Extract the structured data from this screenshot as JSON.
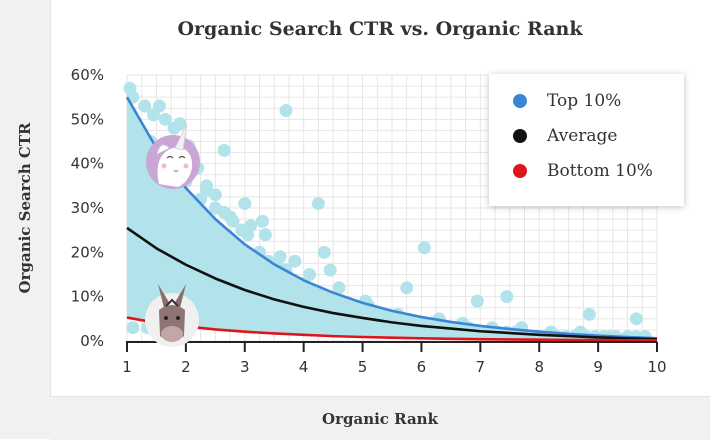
{
  "chart_data": {
    "type": "scatter",
    "title": "Organic Search CTR vs. Organic Rank",
    "xlabel": "Organic Rank",
    "ylabel": "Organic Search CTR",
    "xlim": [
      1,
      10
    ],
    "ylim": [
      0,
      60
    ],
    "x_ticks": [
      "1",
      "2",
      "3",
      "4",
      "5",
      "6",
      "7",
      "8",
      "9",
      "10"
    ],
    "y_ticks": [
      "0%",
      "10%",
      "20%",
      "30%",
      "40%",
      "50%",
      "60%"
    ],
    "grid": true,
    "legend_position": "top-right",
    "series": [
      {
        "name": "Top 10%",
        "color": "#3b85d6",
        "x": [
          1,
          1.5,
          2,
          2.5,
          3,
          3.5,
          4,
          4.5,
          5,
          5.5,
          6,
          6.5,
          7,
          7.5,
          8,
          8.5,
          9,
          9.5,
          10
        ],
        "values": [
          55,
          43.5,
          34.5,
          27.5,
          21.8,
          17.3,
          13.7,
          10.9,
          8.6,
          6.8,
          5.4,
          4.3,
          3.4,
          2.7,
          2.1,
          1.6,
          1.2,
          0.9,
          0.6
        ]
      },
      {
        "name": "Average",
        "color": "#111111",
        "x": [
          1,
          1.5,
          2,
          2.5,
          3,
          3.5,
          4,
          4.5,
          5,
          5.5,
          6,
          6.5,
          7,
          7.5,
          8,
          8.5,
          9,
          9.5,
          10
        ],
        "values": [
          25.5,
          20.9,
          17.2,
          14.1,
          11.5,
          9.4,
          7.7,
          6.3,
          5.2,
          4.2,
          3.4,
          2.8,
          2.2,
          1.8,
          1.4,
          1.1,
          0.8,
          0.6,
          0.4
        ]
      },
      {
        "name": "Bottom 10%",
        "color": "#e0141b",
        "x": [
          1,
          1.5,
          2,
          2.5,
          3,
          3.5,
          4,
          4.5,
          5,
          5.5,
          6,
          6.5,
          7,
          7.5,
          8,
          8.5,
          9,
          9.5,
          10
        ],
        "values": [
          5.3,
          4.1,
          3.3,
          2.6,
          2.1,
          1.7,
          1.4,
          1.1,
          0.9,
          0.75,
          0.6,
          0.5,
          0.42,
          0.35,
          0.3,
          0.25,
          0.2,
          0.17,
          0.15
        ]
      }
    ],
    "scatter_points": {
      "color": "#b3e3ea",
      "x": [
        1.05,
        1.1,
        1.3,
        1.45,
        1.55,
        1.65,
        1.8,
        1.9,
        2.05,
        2.2,
        2.35,
        2.5,
        2.65,
        2.8,
        2.95,
        3.05,
        3.25,
        3.4,
        3.55,
        3.7,
        3.85,
        4.0,
        4.15,
        4.3,
        4.4,
        4.55,
        4.7,
        4.85,
        5.0,
        5.2,
        5.35,
        5.5,
        5.7,
        5.9,
        6.05,
        6.2,
        6.4,
        6.6,
        6.8,
        6.95,
        7.1,
        7.3,
        7.45,
        7.6,
        7.8,
        7.95,
        8.1,
        8.3,
        8.45,
        8.6,
        8.8,
        8.95,
        9.1,
        9.3,
        9.5,
        9.65,
        3.7,
        6.05,
        4.25,
        2.65,
        1.1,
        1.55,
        1.85,
        2.35,
        3.0,
        3.3,
        4.35,
        5.75,
        6.95,
        7.45,
        8.85,
        9.65,
        1.2,
        1.4,
        2.0,
        2.5,
        3.1,
        3.6,
        4.1,
        4.6,
        5.1,
        5.6,
        6.3,
        6.7,
        7.2,
        7.7,
        8.2,
        8.7,
        9.2,
        9.8,
        1.35,
        1.7,
        2.25,
        2.75,
        3.35,
        3.85,
        4.45,
        5.05
      ],
      "y": [
        57,
        55,
        53,
        51,
        53,
        50,
        48,
        49,
        44,
        39,
        35,
        33,
        29,
        27,
        25,
        24,
        20,
        18,
        17,
        16,
        13,
        13,
        11,
        10,
        9,
        9,
        8,
        7,
        7,
        6,
        6,
        5,
        5,
        4,
        4,
        4,
        3,
        3,
        3,
        2,
        2,
        2,
        2,
        2,
        1,
        1,
        1,
        1,
        1,
        1,
        1,
        1,
        1,
        1,
        1,
        1,
        52,
        21,
        31,
        43,
        3,
        4,
        3,
        34,
        31,
        27,
        20,
        12,
        9,
        10,
        6,
        5,
        40,
        45,
        36,
        30,
        26,
        19,
        15,
        12,
        8,
        6,
        5,
        4,
        3,
        3,
        2,
        2,
        1,
        1,
        3,
        4,
        32,
        28,
        24,
        18,
        16,
        9
      ]
    },
    "shaded_region": {
      "color": "#b3e3ea",
      "between": [
        "Bottom 10%",
        "Top 10%"
      ]
    }
  }
}
